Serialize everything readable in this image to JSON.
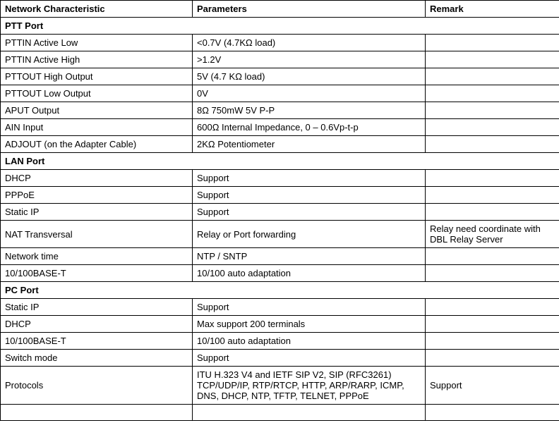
{
  "headers": {
    "c1": "Network Characteristic",
    "c2": "Parameters",
    "c3": "Remark"
  },
  "sections": {
    "ptt": "PTT Port",
    "lan": "LAN Port",
    "pc": "PC Port"
  },
  "ptt_rows": [
    {
      "c1": "PTTIN Active Low",
      "c2": "<0.7V (4.7KΩ load)",
      "c3": ""
    },
    {
      "c1": "PTTIN Active High",
      "c2": ">1.2V",
      "c3": ""
    },
    {
      "c1": "PTTOUT High Output",
      "c2": "5V (4.7 KΩ load)",
      "c3": ""
    },
    {
      "c1": "PTTOUT Low Output",
      "c2": "0V",
      "c3": ""
    },
    {
      "c1": "APUT Output",
      "c2": "8Ω 750mW 5V P-P",
      "c3": ""
    },
    {
      "c1": "AIN Input",
      "c2": "600Ω Internal Impedance, 0 – 0.6Vp-t-p",
      "c3": ""
    },
    {
      "c1": "ADJOUT (on the Adapter Cable)",
      "c2": "2KΩ Potentiometer",
      "c3": ""
    }
  ],
  "lan_rows": [
    {
      "c1": "DHCP",
      "c2": "Support",
      "c3": ""
    },
    {
      "c1": "PPPoE",
      "c2": "Support",
      "c3": ""
    },
    {
      "c1": "Static IP",
      "c2": "Support",
      "c3": ""
    },
    {
      "c1": "NAT Transversal",
      "c2": "Relay or Port forwarding",
      "c3": " Relay need coordinate with DBL Relay Server"
    },
    {
      "c1": "Network time",
      "c2": "NTP / SNTP",
      "c3": ""
    },
    {
      "c1": "10/100BASE-T",
      "c2": "10/100 auto adaptation",
      "c3": ""
    }
  ],
  "pc_rows": [
    {
      "c1": "Static IP",
      "c2": "Support",
      "c3": ""
    },
    {
      "c1": "DHCP",
      "c2": "Max support 200 terminals",
      "c3": ""
    },
    {
      "c1": "10/100BASE-T",
      "c2": "10/100 auto adaptation",
      "c3": ""
    },
    {
      "c1": "Switch mode",
      "c2": "Support",
      "c3": ""
    },
    {
      "c1": "Protocols",
      "c2": " ITU H.323 V4 and IETF SIP V2, SIP (RFC3261) TCP/UDP/IP, RTP/RTCP, HTTP, ARP/RARP, ICMP, DNS, DHCP, NTP, TFTP, TELNET, PPPoE",
      "c3": "Support"
    }
  ]
}
